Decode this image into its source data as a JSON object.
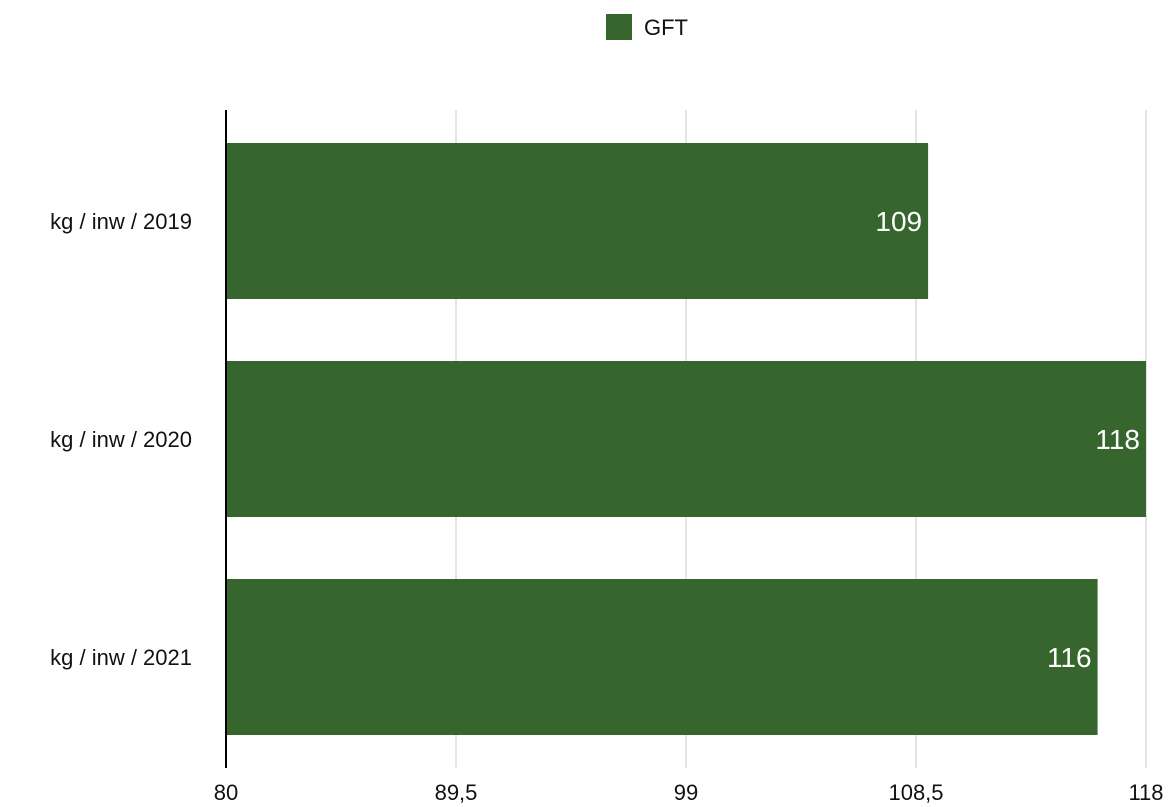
{
  "chart_data": {
    "type": "bar",
    "orientation": "horizontal",
    "categories": [
      "kg / inw / 2019",
      "kg / inw / 2020",
      "kg / inw / 2021"
    ],
    "series": [
      {
        "name": "GFT",
        "color": "#36652d",
        "values": [
          109,
          118,
          116
        ],
        "data_labels": [
          "109",
          "118",
          "116"
        ]
      }
    ],
    "xlim": [
      80,
      118
    ],
    "x_ticks": [
      80,
      89.5,
      99,
      108.5,
      118
    ],
    "x_tick_labels": [
      "80",
      "89,5",
      "99",
      "108,5",
      "118"
    ],
    "grid": "vertical",
    "legend_position": "top-center"
  }
}
